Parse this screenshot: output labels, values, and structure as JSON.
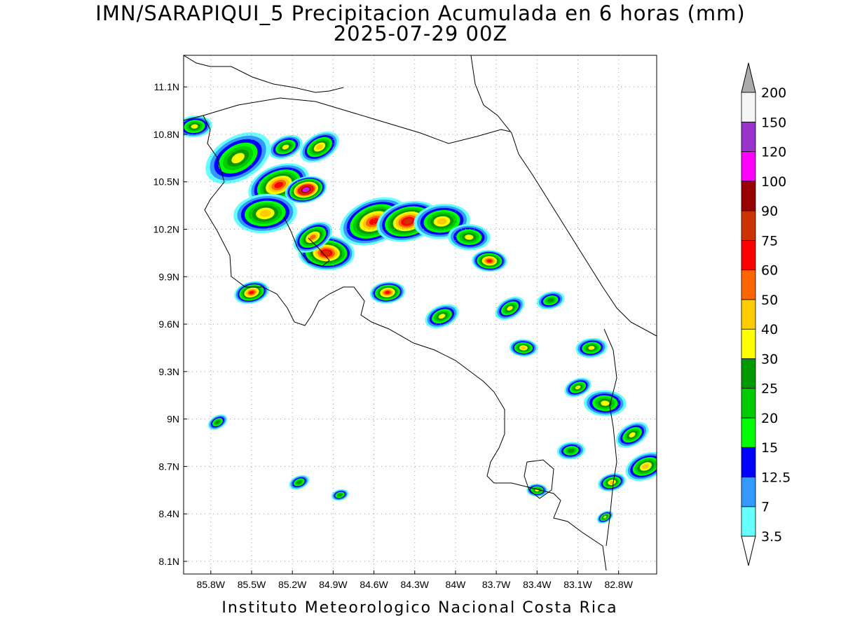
{
  "title": {
    "line1": "IMN/SARAPIQUI_5 Precipitacion Acumulada en 6 horas (mm)",
    "line2": "2025-07-29 00Z"
  },
  "credit": "Instituto Meteorologico Nacional Costa Rica",
  "axes": {
    "lat_labels": [
      "11.1N",
      "10.8N",
      "10.5N",
      "10.2N",
      "9.9N",
      "9.6N",
      "9.3N",
      "9N",
      "8.7N",
      "8.4N",
      "8.1N"
    ],
    "lat_values": [
      11.1,
      10.8,
      10.5,
      10.2,
      9.9,
      9.6,
      9.3,
      9.0,
      8.7,
      8.4,
      8.1
    ],
    "lon_labels": [
      "85.8W",
      "85.5W",
      "85.2W",
      "84.9W",
      "84.6W",
      "84.3W",
      "84W",
      "83.7W",
      "83.4W",
      "83.1W",
      "82.8W"
    ],
    "lon_values": [
      -85.8,
      -85.5,
      -85.2,
      -84.9,
      -84.6,
      -84.3,
      -84.0,
      -83.7,
      -83.4,
      -83.1,
      -82.8
    ],
    "lat_range": [
      8.02,
      11.3
    ],
    "lon_range": [
      -86.0,
      -82.52
    ]
  },
  "colorbar": {
    "labels": [
      "3.5",
      "7",
      "12.5",
      "15",
      "20",
      "25",
      "30",
      "40",
      "50",
      "60",
      "75",
      "90",
      "100",
      "120",
      "150",
      "200"
    ],
    "colors": [
      "#66ffff",
      "#3399ff",
      "#0000ff",
      "#00ff00",
      "#00cc00",
      "#009900",
      "#ffff00",
      "#ffcc00",
      "#ff6600",
      "#ff0000",
      "#cc3300",
      "#990000",
      "#ff00ff",
      "#9933cc",
      "#f5f5f5",
      "#aaaaaa"
    ]
  },
  "rain_cells": [
    {
      "lon": -85.6,
      "lat": 10.65,
      "r": 0.2,
      "level": 6
    },
    {
      "lon": -85.3,
      "lat": 10.48,
      "r": 0.18,
      "level": 9
    },
    {
      "lon": -85.1,
      "lat": 10.45,
      "r": 0.12,
      "level": 13
    },
    {
      "lon": -85.4,
      "lat": 10.3,
      "r": 0.18,
      "level": 7
    },
    {
      "lon": -84.95,
      "lat": 10.05,
      "r": 0.16,
      "level": 10
    },
    {
      "lon": -85.05,
      "lat": 10.15,
      "r": 0.12,
      "level": 8
    },
    {
      "lon": -84.6,
      "lat": 10.25,
      "r": 0.2,
      "level": 9
    },
    {
      "lon": -84.35,
      "lat": 10.25,
      "r": 0.18,
      "level": 10
    },
    {
      "lon": -84.1,
      "lat": 10.25,
      "r": 0.16,
      "level": 7
    },
    {
      "lon": -83.9,
      "lat": 10.15,
      "r": 0.12,
      "level": 6
    },
    {
      "lon": -85.0,
      "lat": 10.72,
      "r": 0.12,
      "level": 7
    },
    {
      "lon": -85.25,
      "lat": 10.72,
      "r": 0.1,
      "level": 6
    },
    {
      "lon": -85.5,
      "lat": 9.8,
      "r": 0.1,
      "level": 9
    },
    {
      "lon": -84.5,
      "lat": 9.8,
      "r": 0.1,
      "level": 9
    },
    {
      "lon": -83.75,
      "lat": 10.0,
      "r": 0.1,
      "level": 9
    },
    {
      "lon": -83.6,
      "lat": 9.7,
      "r": 0.09,
      "level": 6
    },
    {
      "lon": -84.1,
      "lat": 9.65,
      "r": 0.1,
      "level": 6
    },
    {
      "lon": -83.3,
      "lat": 9.75,
      "r": 0.08,
      "level": 5
    },
    {
      "lon": -83.0,
      "lat": 9.45,
      "r": 0.09,
      "level": 6
    },
    {
      "lon": -82.9,
      "lat": 9.1,
      "r": 0.12,
      "level": 6
    },
    {
      "lon": -82.7,
      "lat": 8.9,
      "r": 0.1,
      "level": 6
    },
    {
      "lon": -82.6,
      "lat": 8.7,
      "r": 0.12,
      "level": 7
    },
    {
      "lon": -82.85,
      "lat": 8.6,
      "r": 0.08,
      "level": 7
    },
    {
      "lon": -83.15,
      "lat": 8.8,
      "r": 0.08,
      "level": 5
    },
    {
      "lon": -83.4,
      "lat": 8.55,
      "r": 0.06,
      "level": 6
    },
    {
      "lon": -85.75,
      "lat": 8.98,
      "r": 0.06,
      "level": 5
    },
    {
      "lon": -85.15,
      "lat": 8.6,
      "r": 0.06,
      "level": 5
    },
    {
      "lon": -84.85,
      "lat": 8.52,
      "r": 0.05,
      "level": 5
    },
    {
      "lon": -85.92,
      "lat": 10.85,
      "r": 0.1,
      "level": 6
    },
    {
      "lon": -83.5,
      "lat": 9.45,
      "r": 0.08,
      "level": 7
    },
    {
      "lon": -82.9,
      "lat": 8.38,
      "r": 0.05,
      "level": 6
    },
    {
      "lon": -83.1,
      "lat": 9.2,
      "r": 0.08,
      "level": 6
    }
  ]
}
